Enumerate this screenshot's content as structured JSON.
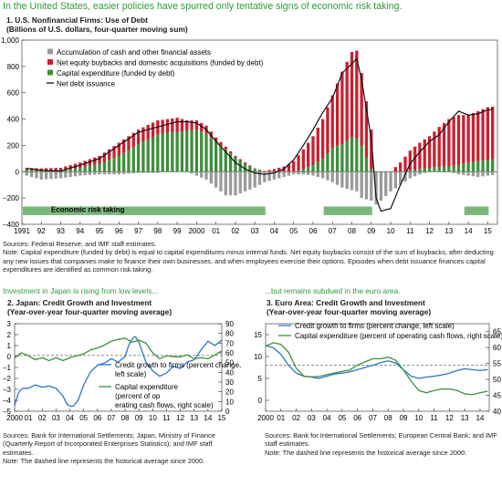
{
  "headline": "In the United States, easier policies have spurred only tentative signs of economic risk taking.",
  "left_subhead": "Investment in Japan is rising from low levels...",
  "right_subhead": "...but remains subdued in the euro area.",
  "notes": {
    "us_sources": "Sources: Federal Reserve; and IMF staff estimates.",
    "us_note": "Note: Capital expenditure (funded by debt) is equal to capital expenditures minus internal funds. Net equity buybacks consist of the sum of buybacks, after deducting any new issues that companies make to finance their own businesses, and when employees exercise their options. Episodes when debt issuance finances capital expenditures are identified as common risk taking.",
    "jp_sources": "Sources: Bank for International Settlements; Japan, Ministry of Finance (Quarterly Report of Incorporated Enterprises Statistics); and IMF staff estimates.",
    "jp_note": "Note: The dashed line represents the historical average since 2000.",
    "ea_sources": "Sources: Bank for International Settlements; European Central Bank; and IMF staff estimates.",
    "ea_note": "Note: The dashed line represents the historical average since 2000."
  },
  "colors": {
    "cash": "#9a9a9a",
    "equity": "#cc1f2f",
    "capex": "#3d8f3a",
    "netdebt": "#111111",
    "band": "#7ab87a",
    "credit": "#2e75c7",
    "capex_line": "#3d8f3a",
    "dashed": "#808080"
  },
  "chart_data": [
    {
      "type": "bar",
      "title": "1. U.S. Nonfinancial Firms: Use of Debt",
      "subtitle": "(Billions of U.S. dollars, four-quarter moving sum)",
      "x_tick_labels": [
        "1991",
        "92",
        "93",
        "94",
        "95",
        "96",
        "97",
        "98",
        "99",
        "2000",
        "01",
        "02",
        "03",
        "04",
        "05",
        "06",
        "07",
        "08",
        "09",
        "10",
        "11",
        "12",
        "13",
        "14",
        "15"
      ],
      "y_tick_labels": [
        "1,000",
        "800",
        "600",
        "400",
        "200",
        "0",
        "–200",
        "–400"
      ],
      "ylim": [
        -400,
        1000
      ],
      "x_range": [
        1991,
        2015.5
      ],
      "legend": [
        "Accumulation of cash and other financial assets",
        "Net equity buybacks and domestic acquisitions (funded by debt)",
        "Capital expenditure (funded by debt)",
        "Net debt issuance"
      ],
      "band_label": "Economic risk taking",
      "risk_taking_periods": [
        [
          1991.0,
          2003.5
        ],
        [
          2006.5,
          2009.0
        ],
        [
          2013.75,
          2015.0
        ]
      ],
      "anchors": {
        "x": [
          1991,
          1992,
          1993,
          1994,
          1995,
          1996,
          1997,
          1998,
          1998.5,
          1999,
          1999.5,
          2000,
          2000.5,
          2001,
          2001.5,
          2002,
          2002.5,
          2003,
          2003.5,
          2004,
          2004.5,
          2005,
          2005.5,
          2006,
          2006.5,
          2007,
          2007.5,
          2008,
          2008.25,
          2008.5,
          2009,
          2009.25,
          2009.5,
          2010,
          2010.5,
          2011,
          2011.5,
          2012,
          2012.5,
          2013,
          2013.5,
          2014,
          2014.5,
          2015,
          2015.5
        ],
        "capex": [
          20,
          5,
          10,
          30,
          60,
          120,
          210,
          280,
          300,
          300,
          310,
          320,
          290,
          230,
          170,
          110,
          60,
          20,
          0,
          0,
          0,
          0,
          20,
          50,
          100,
          180,
          210,
          260,
          250,
          200,
          20,
          0,
          0,
          0,
          0,
          10,
          20,
          30,
          40,
          40,
          50,
          70,
          80,
          90,
          100
        ],
        "equity": [
          10,
          20,
          20,
          40,
          60,
          100,
          110,
          110,
          100,
          110,
          80,
          70,
          60,
          30,
          20,
          10,
          10,
          5,
          5,
          20,
          40,
          80,
          150,
          220,
          300,
          400,
          550,
          650,
          670,
          550,
          300,
          0,
          0,
          0,
          70,
          150,
          200,
          240,
          300,
          360,
          380,
          360,
          380,
          400,
          400
        ],
        "cash": [
          -20,
          -60,
          -50,
          -30,
          -20,
          -20,
          -10,
          -10,
          0,
          0,
          0,
          -30,
          -60,
          -120,
          -180,
          -180,
          -150,
          -120,
          -80,
          -60,
          -40,
          -20,
          -20,
          -30,
          -50,
          -80,
          -120,
          -140,
          -150,
          -200,
          -220,
          -250,
          -220,
          -150,
          -100,
          -50,
          -20,
          0,
          0,
          0,
          -20,
          -30,
          -40,
          -30,
          -20
        ],
        "net_debt": [
          30,
          10,
          5,
          50,
          100,
          200,
          300,
          340,
          360,
          380,
          380,
          370,
          320,
          230,
          150,
          70,
          20,
          -10,
          -20,
          -10,
          20,
          90,
          200,
          320,
          450,
          560,
          750,
          820,
          860,
          700,
          250,
          -200,
          -300,
          -280,
          -100,
          60,
          150,
          230,
          280,
          380,
          460,
          430,
          440,
          470,
          480
        ]
      }
    },
    {
      "type": "line",
      "title": "2. Japan: Credit Growth and Investment",
      "subtitle": "(Year-over-year four-quarter moving average)",
      "x_tick_labels": [
        "2000",
        "01",
        "02",
        "03",
        "04",
        "05",
        "06",
        "07",
        "08",
        "09",
        "10",
        "11",
        "12",
        "13",
        "14",
        "15"
      ],
      "x_range": [
        2000,
        2015
      ],
      "y_left_tick_labels": [
        "3",
        "2",
        "1",
        "0",
        "–1",
        "–2",
        "–3",
        "–4",
        "–5"
      ],
      "ylim_left": [
        -5,
        3
      ],
      "y_right_tick_labels": [
        "90",
        "80",
        "70",
        "60",
        "50",
        "40",
        "30",
        "20",
        "10",
        "0"
      ],
      "ylim_right": [
        0,
        90
      ],
      "dashed_left_value": 0.1,
      "series": [
        {
          "name": "Credit growth to firms (percent change, left scale)",
          "x": [
            2000,
            2000.3,
            2000.6,
            2001,
            2001.5,
            2002,
            2002.5,
            2003,
            2003.5,
            2003.8,
            2004.2,
            2004.6,
            2005,
            2005.5,
            2006,
            2006.5,
            2007,
            2007.5,
            2008,
            2008.3,
            2008.7,
            2009,
            2009.5,
            2010,
            2010.5,
            2011,
            2011.5,
            2012,
            2012.5,
            2013,
            2013.5,
            2014,
            2014.5,
            2014.8,
            2015
          ],
          "values": [
            -4.5,
            -3.2,
            -2.9,
            -2.9,
            -2.6,
            -2.8,
            -2.7,
            -2.9,
            -3.6,
            -4.4,
            -4.6,
            -4.0,
            -2.6,
            -1.4,
            -0.8,
            -0.6,
            -0.2,
            -0.5,
            0.0,
            1.2,
            1.9,
            1.3,
            -0.5,
            -1.3,
            -1.8,
            -1.5,
            -0.9,
            -1.1,
            -0.5,
            -0.3,
            0.6,
            1.4,
            1.0,
            1.3,
            1.5
          ]
        },
        {
          "name": "Capital expenditure (percent of operating cash flows, right scale)",
          "x": [
            2000,
            2000.5,
            2001,
            2001.5,
            2002,
            2002.5,
            2003,
            2003.5,
            2004,
            2004.5,
            2005,
            2005.5,
            2006,
            2006.5,
            2007,
            2007.5,
            2008,
            2008.5,
            2009,
            2009.5,
            2010,
            2010.5,
            2011,
            2011.5,
            2012,
            2012.5,
            2013,
            2013.5,
            2014,
            2014.5,
            2015
          ],
          "values": [
            55,
            60,
            57,
            53,
            55,
            52,
            55,
            52,
            55,
            57,
            59,
            63,
            65,
            68,
            72,
            74,
            75,
            71,
            73,
            70,
            60,
            54,
            57,
            56,
            56,
            58,
            54,
            55,
            54,
            58,
            62
          ]
        }
      ]
    },
    {
      "type": "line",
      "title": "3. Euro Area: Credit Growth and Investment",
      "subtitle": "(Year-over-year four-quarter moving average)",
      "x_tick_labels": [
        "2000",
        "01",
        "02",
        "03",
        "04",
        "05",
        "06",
        "07",
        "08",
        "09",
        "10",
        "11",
        "12",
        "13",
        "14"
      ],
      "x_range": [
        2000,
        2014.6
      ],
      "y_left_tick_labels": [
        "15",
        "10",
        "5",
        "0"
      ],
      "ylim_left": [
        -2.5,
        17.5
      ],
      "y_right_tick_labels": [
        "65",
        "60",
        "55",
        "50",
        "45",
        "40"
      ],
      "ylim_right": [
        40,
        67.5
      ],
      "dashed_left_value": 8.0,
      "series": [
        {
          "name": "Credit growth to firms (percent change, left scale)",
          "x": [
            2000,
            2000.5,
            2001,
            2001.5,
            2002,
            2002.5,
            2003,
            2003.5,
            2004,
            2004.5,
            2005,
            2005.5,
            2006,
            2006.5,
            2007,
            2007.5,
            2008,
            2008.5,
            2009,
            2009.5,
            2010,
            2010.5,
            2011,
            2011.5,
            2012,
            2012.5,
            2013,
            2013.5,
            2014,
            2014.5
          ],
          "values": [
            12.5,
            12,
            10.5,
            8,
            6.2,
            5.5,
            5.3,
            5.0,
            5.5,
            6.0,
            6.2,
            6.5,
            7.0,
            7.5,
            8.0,
            8.6,
            9.0,
            8.5,
            7.0,
            5.5,
            5.0,
            5.3,
            5.5,
            5.8,
            6.2,
            6.8,
            7.2,
            7.0,
            6.8,
            7.0
          ]
        },
        {
          "name": "Capital expenditure (percent of operating cash flows, right scale)",
          "x": [
            2000,
            2000.5,
            2001,
            2001.5,
            2002,
            2002.5,
            2003,
            2003.5,
            2004,
            2004.5,
            2005,
            2005.5,
            2006,
            2006.5,
            2007,
            2007.5,
            2008,
            2008.5,
            2009,
            2009.5,
            2010,
            2010.5,
            2011,
            2011.5,
            2012,
            2012.5,
            2013,
            2013.5,
            2014,
            2014.5
          ],
          "values": [
            60.5,
            61.5,
            61,
            58.5,
            53.5,
            51,
            50.8,
            50.9,
            51.5,
            52,
            52.5,
            53,
            54.5,
            55.5,
            56.5,
            56.5,
            57,
            56,
            53,
            49.5,
            46.5,
            45.8,
            46.5,
            47,
            47,
            46.5,
            45.5,
            45.2,
            45.8,
            46.3
          ]
        }
      ]
    }
  ]
}
